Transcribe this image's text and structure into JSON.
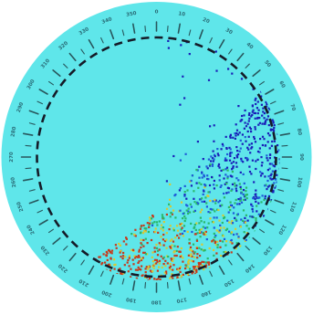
{
  "dial": {
    "tick_labels": [
      "0",
      "10",
      "20",
      "30",
      "40",
      "50",
      "60",
      "70",
      "80",
      "90",
      "100",
      "110",
      "120",
      "130",
      "140",
      "150",
      "160",
      "170",
      "180",
      "190",
      "200",
      "210",
      "220",
      "230",
      "240",
      "250",
      "260",
      "270",
      "280",
      "290",
      "300",
      "310",
      "320",
      "330",
      "340",
      "350"
    ],
    "colors": {
      "background": "#5fe6ea",
      "ring": "#5fe6ea",
      "ticks": "#1f3f45",
      "inner_dashes": "#151b28",
      "label": "#2a6d78",
      "points_low": "#1a1fb8",
      "points_mid": "#2ab86a",
      "points_high": "#c63a1c"
    }
  },
  "point_cloud": {
    "description_of_encoding": "density coloring from dark blue (low) through green/yellow to red (high)",
    "color_scale": [
      "#1a1fb8",
      "#1f5ad8",
      "#2ab86a",
      "#d8c832",
      "#c63a1c"
    ]
  }
}
